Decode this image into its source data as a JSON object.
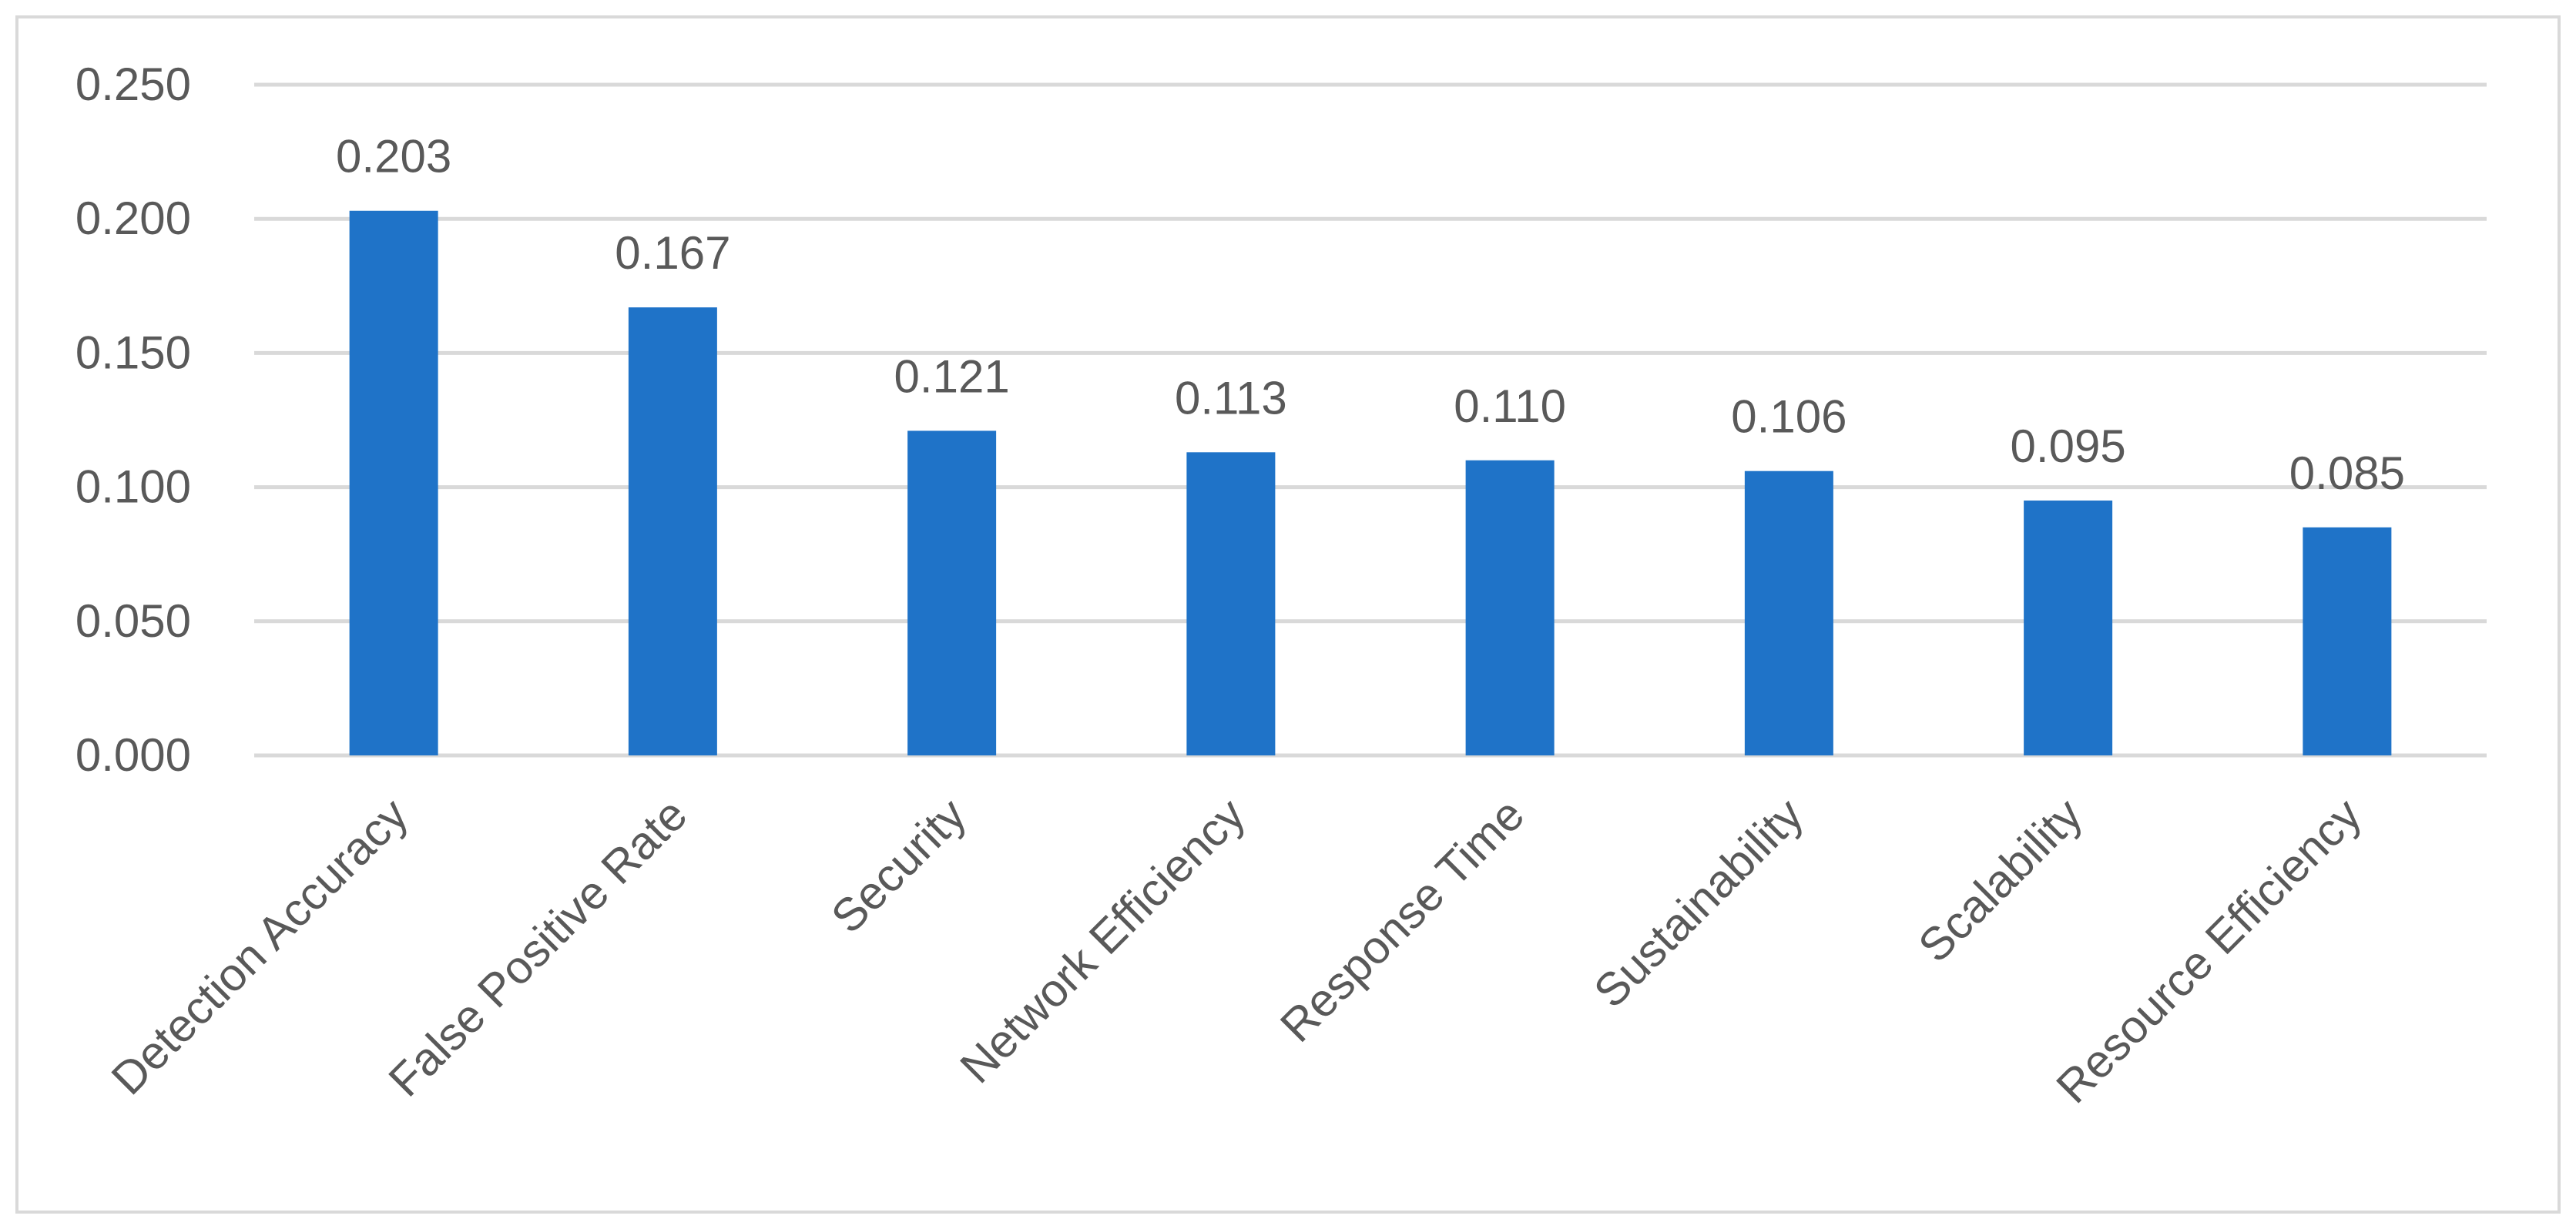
{
  "chart_data": {
    "type": "bar",
    "title": "",
    "xlabel": "",
    "ylabel": "",
    "categories": [
      "Detection Accuracy",
      "False Positive Rate",
      "Security",
      "Network Efficiency",
      "Response Time",
      "Sustainability",
      "Scalability",
      "Resource Efficiency"
    ],
    "values": [
      0.203,
      0.167,
      0.121,
      0.113,
      0.11,
      0.106,
      0.095,
      0.085
    ],
    "data_labels": [
      "0.203",
      "0.167",
      "0.121",
      "0.113",
      "0.110",
      "0.106",
      "0.095",
      "0.085"
    ],
    "ylim": [
      0,
      0.25
    ],
    "yticks": [
      0.0,
      0.05,
      0.1,
      0.15,
      0.2,
      0.25
    ],
    "ytick_labels": [
      "0.000",
      "0.050",
      "0.100",
      "0.150",
      "0.200",
      "0.250"
    ],
    "grid": true,
    "legend": "none",
    "bar_color": "#1F73C8",
    "grid_color": "#D9D9D9",
    "text_color": "#595959",
    "frame_color": "#D9D9D9"
  }
}
